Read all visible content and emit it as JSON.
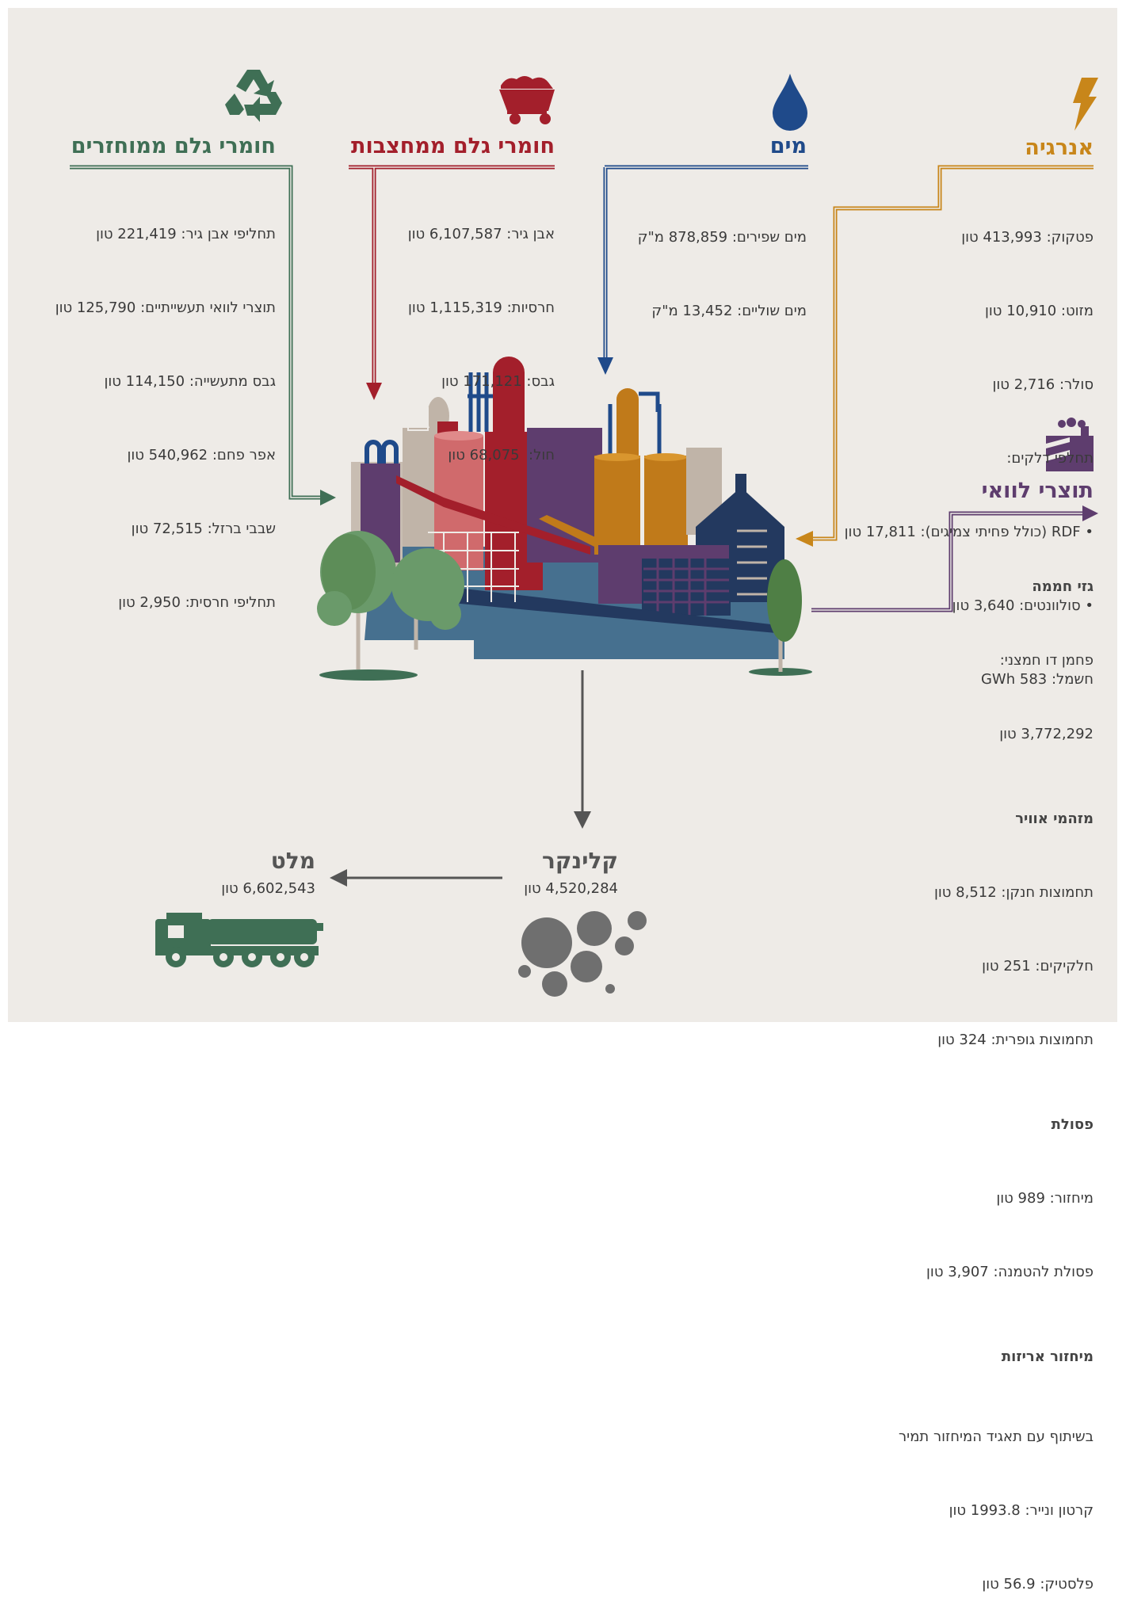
{
  "recycled": {
    "title": "חומרי גלם ממוחזרים",
    "lines": [
      "תחליפי אבן גיר: 221,419 טון",
      "תוצרי לוואי תעשייתיים: 125,790 טון",
      "גבס מתעשייה: 114,150 טון",
      "אפר פחם: 540,962 טון",
      "שבבי ברזל: 72,515 טון",
      "תחליפי חרסית: 2,950 טון"
    ]
  },
  "quarry": {
    "title": "חומרי גלם ממחצבות",
    "lines": [
      "אבן גיר: 6,107,587 טון",
      "חרסיות: 1,115,319 טון",
      "גבס: 171,121 טון",
      "חול:  68,075 טון"
    ]
  },
  "water": {
    "title": "מים",
    "lines": [
      "מים שפירים: 878,859 מ\"ק",
      "מים שוליים: 13,452 מ\"ק"
    ]
  },
  "energy": {
    "title": "אנרגיה",
    "lines": [
      "פטקוק: 413,993 טון",
      "מזוט: 10,910 טון",
      "סולר: 2,716 טון",
      {
        "text": "תחלפי דלקים:",
        "items": [
          "RDF (כולל פחיתי צמיגים): 17,811 טון",
          "סולוונטים: 3,640 טון"
        ]
      },
      "חשמל: 583 GWh"
    ]
  },
  "byproducts": {
    "title": "תוצרי לוואי",
    "groups": [
      {
        "title": "גזי חממה",
        "lines": [
          "פחמן דו חמצני:",
          "3,772,292 טון"
        ]
      },
      {
        "title": "מזהמי אוויר",
        "lines": [
          "תחמוצות חנקן: 8,512 טון",
          "חלקיקים: 251 טון",
          "תחמוצות גופרית: 324 טון"
        ]
      },
      {
        "title": "פסולת",
        "lines": [
          "מיחזור: 989 טון",
          "פסולת להטמנה: 3,907 טון"
        ]
      },
      {
        "title": "מיחזור אריזות",
        "lines": [
          "בשיתוף עם תאגיד המיחזור תמיר",
          "קרטון ונייר: 1993.8 טון",
          "פלסטיק: 56.9 טון"
        ]
      }
    ]
  },
  "clinker": {
    "title": "קלינקר",
    "amount": "4,520,284 טון"
  },
  "cement": {
    "title": "מלט",
    "amount": "6,602,543 טון"
  }
}
